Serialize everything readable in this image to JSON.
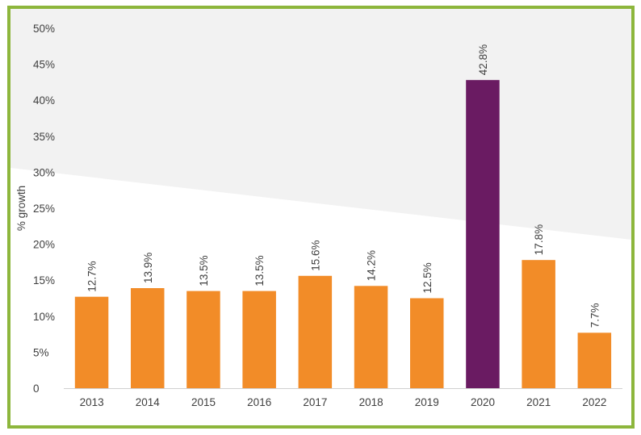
{
  "chart_data": {
    "type": "bar",
    "categories": [
      "2013",
      "2014",
      "2015",
      "2016",
      "2017",
      "2018",
      "2019",
      "2020",
      "2021",
      "2022"
    ],
    "values": [
      12.7,
      13.9,
      13.5,
      13.5,
      15.6,
      14.2,
      12.5,
      42.8,
      17.8,
      7.7
    ],
    "data_labels": [
      "12.7%",
      "13.9%",
      "13.5%",
      "13.5%",
      "15.6%",
      "14.2%",
      "12.5%",
      "42.8%",
      "17.8%",
      "7.7%"
    ],
    "ylabel": "% growth",
    "xlabel": "",
    "ylim": [
      0,
      50
    ],
    "y_ticks": [
      0,
      5,
      10,
      15,
      20,
      25,
      30,
      35,
      40,
      45,
      50
    ],
    "y_tick_labels": [
      "0",
      "5%",
      "10%",
      "15%",
      "20%",
      "25%",
      "30%",
      "35%",
      "40%",
      "45%",
      "50%"
    ],
    "grid": false,
    "legend": "none",
    "colors": {
      "bar": "#f28c28",
      "highlight_bar": "#6a1b62",
      "highlight_category": "2020",
      "background_band": "#f2f2f2",
      "border": "#8db63c",
      "axis": "#d0d0d0",
      "text": "#404040"
    }
  }
}
